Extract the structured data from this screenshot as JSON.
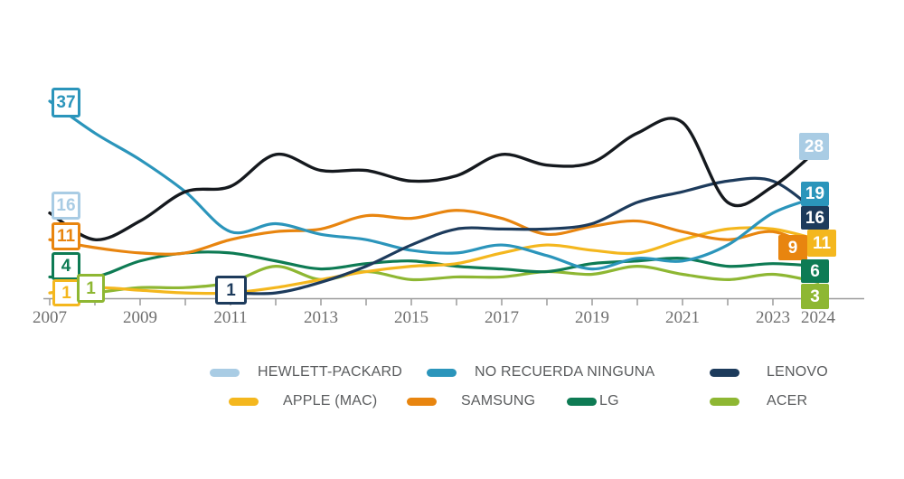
{
  "colors": {
    "background": "#ffffff",
    "axis": "#9b9b9b",
    "tick_labels": "#6f6f6f",
    "legend_text": "#5a5c5e"
  },
  "chart_data": {
    "type": "line",
    "title": "",
    "x_years": [
      2007,
      2008,
      2009,
      2010,
      2011,
      2012,
      2013,
      2014,
      2015,
      2016,
      2017,
      2018,
      2019,
      2020,
      2021,
      2022,
      2023,
      2024
    ],
    "x_axis_tick_labels": [
      "2007",
      "2009",
      "2011",
      "2013",
      "2015",
      "2017",
      "2019",
      "2021",
      "2023",
      "2024"
    ],
    "y_implied_range": [
      0,
      37
    ],
    "grid": false,
    "legend_position": "bottom",
    "series": [
      {
        "id": "hp",
        "label": "HEWLETT-PACKARD",
        "color": "#a9cce4",
        "line_color": "#15191e",
        "start_label": 16,
        "end_label": 28,
        "first_year": 2007,
        "values": [
          16,
          11,
          14.5,
          20,
          21,
          27,
          24,
          24,
          22,
          23,
          27,
          25,
          25.5,
          31,
          33,
          18,
          21,
          28
        ]
      },
      {
        "id": "no_recuerda",
        "label": "NO RECUERDA NINGUNA",
        "color": "#2b95bb",
        "line_color": "#2b95bb",
        "start_label": 37,
        "end_label": 19,
        "first_year": 2007,
        "values": [
          37,
          31,
          26,
          20,
          12.5,
          14,
          12,
          11,
          9,
          8.5,
          10,
          8,
          5.5,
          7.5,
          7,
          10,
          16,
          19
        ]
      },
      {
        "id": "lenovo",
        "label": "LENOVO",
        "color": "#1d3b5c",
        "line_color": "#1d3b5c",
        "start_label": 1,
        "end_label": 16,
        "first_year": 2011,
        "values": [
          1,
          1,
          3,
          6,
          10,
          13,
          13,
          13,
          14,
          18,
          20,
          22,
          22,
          16
        ]
      },
      {
        "id": "apple",
        "label": "APPLE (MAC)",
        "color": "#f4b71e",
        "line_color": "#f4b71e",
        "start_label": 1,
        "end_label": 11,
        "first_year": 2007,
        "values": [
          1,
          2,
          1.5,
          1,
          1,
          2,
          3.5,
          5,
          6,
          6.5,
          8.5,
          10,
          9,
          8.5,
          11,
          13,
          13,
          11
        ]
      },
      {
        "id": "samsung",
        "label": "SAMSUNG",
        "color": "#e8850f",
        "line_color": "#e8850f",
        "start_label": 11,
        "end_label": 9,
        "first_year": 2007,
        "values": [
          11,
          9.5,
          8.5,
          8.5,
          11,
          12.5,
          13,
          15.5,
          15,
          16.5,
          15,
          12,
          13.5,
          14.5,
          12.5,
          11,
          12.5,
          9
        ]
      },
      {
        "id": "lg",
        "label": "LG",
        "color": "#0e7b54",
        "line_color": "#0e7b54",
        "start_label": 4,
        "end_label": 6,
        "first_year": 2007,
        "values": [
          4,
          4,
          7,
          8.5,
          8.5,
          7,
          5.5,
          6.5,
          7,
          6,
          5.5,
          5,
          6.5,
          7,
          7.5,
          6,
          6.5,
          6
        ]
      },
      {
        "id": "acer",
        "label": "ACER",
        "color": "#8eb733",
        "line_color": "#8eb733",
        "start_label": 1,
        "end_label": 3,
        "first_year": 2008,
        "values": [
          1,
          2,
          2,
          3,
          6,
          3.5,
          5,
          3.5,
          4,
          4,
          5,
          4.5,
          6,
          4.5,
          3.5,
          4.5,
          3
        ]
      }
    ]
  }
}
